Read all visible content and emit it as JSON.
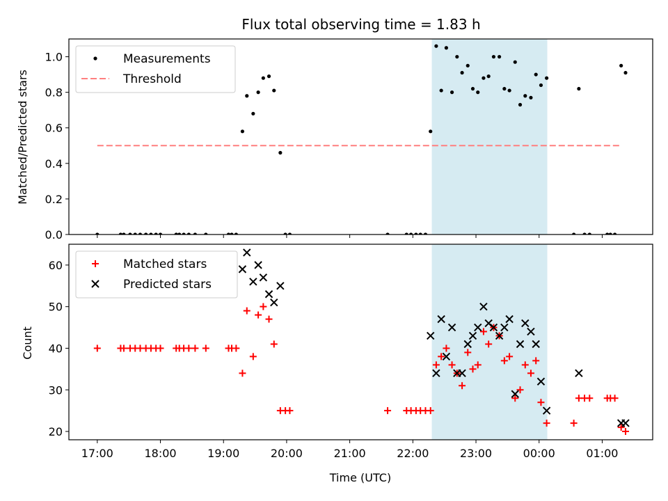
{
  "chart_data": [
    {
      "type": "scatter",
      "title": "Flux total observing time = 1.83 h",
      "xlabel": "",
      "ylabel": "Matched/Predicted stars",
      "xlim": [
        -0.45,
        8.8
      ],
      "ylim": [
        0,
        1.1
      ],
      "yticks": [
        0,
        0.2,
        0.4,
        0.6,
        0.8,
        1.0
      ],
      "ytick_labels": [
        "0.0",
        "0.2",
        "0.4",
        "0.6",
        "0.8",
        "1.0"
      ],
      "xticks_hours": [
        0,
        1,
        2,
        3,
        4,
        5,
        6,
        7,
        8
      ],
      "shaded_span": {
        "x": [
          5.3,
          7.13
        ],
        "color": "#add8e6"
      },
      "legend": {
        "position": "upper-left",
        "entries": [
          "Measurements",
          "Threshold"
        ]
      },
      "threshold": {
        "name": "Threshold",
        "y": 0.5,
        "x": [
          0,
          8.3
        ],
        "color": "#ff7f7f",
        "style": "dashed"
      },
      "series": [
        {
          "name": "Measurements",
          "color": "#000000",
          "marker": "dot",
          "points": [
            [
              0.0,
              0.0
            ],
            [
              0.37,
              0.0
            ],
            [
              0.42,
              0.0
            ],
            [
              0.52,
              0.0
            ],
            [
              0.6,
              0.0
            ],
            [
              0.68,
              0.0
            ],
            [
              0.77,
              0.0
            ],
            [
              0.85,
              0.0
            ],
            [
              0.93,
              0.0
            ],
            [
              1.0,
              0.0
            ],
            [
              1.25,
              0.0
            ],
            [
              1.3,
              0.0
            ],
            [
              1.37,
              0.0
            ],
            [
              1.45,
              0.0
            ],
            [
              1.55,
              0.0
            ],
            [
              1.72,
              0.0
            ],
            [
              2.08,
              0.0
            ],
            [
              2.13,
              0.0
            ],
            [
              2.2,
              0.0
            ],
            [
              2.3,
              0.58
            ],
            [
              2.37,
              0.78
            ],
            [
              2.47,
              0.68
            ],
            [
              2.55,
              0.8
            ],
            [
              2.63,
              0.88
            ],
            [
              2.72,
              0.89
            ],
            [
              2.8,
              0.81
            ],
            [
              2.9,
              0.46
            ],
            [
              2.98,
              0.0
            ],
            [
              3.05,
              0.0
            ],
            [
              4.6,
              0.0
            ],
            [
              4.9,
              0.0
            ],
            [
              4.97,
              0.0
            ],
            [
              5.05,
              0.0
            ],
            [
              5.12,
              0.0
            ],
            [
              5.2,
              0.0
            ],
            [
              5.28,
              0.58
            ],
            [
              5.37,
              1.06
            ],
            [
              5.45,
              0.81
            ],
            [
              5.53,
              1.05
            ],
            [
              5.62,
              0.8
            ],
            [
              5.7,
              1.0
            ],
            [
              5.78,
              0.91
            ],
            [
              5.87,
              0.95
            ],
            [
              5.95,
              0.82
            ],
            [
              6.03,
              0.8
            ],
            [
              6.12,
              0.88
            ],
            [
              6.2,
              0.89
            ],
            [
              6.28,
              1.0
            ],
            [
              6.37,
              1.0
            ],
            [
              6.45,
              0.82
            ],
            [
              6.53,
              0.81
            ],
            [
              6.62,
              0.97
            ],
            [
              6.7,
              0.73
            ],
            [
              6.78,
              0.78
            ],
            [
              6.87,
              0.77
            ],
            [
              6.95,
              0.9
            ],
            [
              7.03,
              0.84
            ],
            [
              7.12,
              0.88
            ],
            [
              7.55,
              0.0
            ],
            [
              7.63,
              0.82
            ],
            [
              7.72,
              0.0
            ],
            [
              7.8,
              0.0
            ],
            [
              8.08,
              0.0
            ],
            [
              8.13,
              0.0
            ],
            [
              8.2,
              0.0
            ],
            [
              8.3,
              0.95
            ],
            [
              8.37,
              0.91
            ]
          ]
        }
      ]
    },
    {
      "type": "scatter",
      "title": "",
      "xlabel": "Time (UTC)",
      "ylabel": "Count",
      "xlim": [
        -0.45,
        8.8
      ],
      "ylim": [
        18,
        65
      ],
      "yticks": [
        20,
        30,
        40,
        50,
        60
      ],
      "ytick_labels": [
        "20",
        "30",
        "40",
        "50",
        "60"
      ],
      "xticks_hours": [
        0,
        1,
        2,
        3,
        4,
        5,
        6,
        7,
        8
      ],
      "xtick_labels": [
        "17:00",
        "18:00",
        "19:00",
        "20:00",
        "21:00",
        "22:00",
        "23:00",
        "00:00",
        "01:00"
      ],
      "shaded_span": {
        "x": [
          5.3,
          7.13
        ],
        "color": "#add8e6"
      },
      "legend": {
        "position": "upper-left",
        "entries": [
          "Matched stars",
          "Predicted stars"
        ]
      },
      "series": [
        {
          "name": "Matched stars",
          "color": "#ff0000",
          "marker": "plus",
          "points": [
            [
              0.0,
              40
            ],
            [
              0.37,
              40
            ],
            [
              0.42,
              40
            ],
            [
              0.52,
              40
            ],
            [
              0.6,
              40
            ],
            [
              0.68,
              40
            ],
            [
              0.77,
              40
            ],
            [
              0.85,
              40
            ],
            [
              0.93,
              40
            ],
            [
              1.0,
              40
            ],
            [
              1.25,
              40
            ],
            [
              1.3,
              40
            ],
            [
              1.37,
              40
            ],
            [
              1.45,
              40
            ],
            [
              1.55,
              40
            ],
            [
              1.72,
              40
            ],
            [
              2.08,
              40
            ],
            [
              2.13,
              40
            ],
            [
              2.2,
              40
            ],
            [
              2.3,
              34
            ],
            [
              2.37,
              49
            ],
            [
              2.47,
              38
            ],
            [
              2.55,
              48
            ],
            [
              2.63,
              50
            ],
            [
              2.72,
              47
            ],
            [
              2.8,
              41
            ],
            [
              2.9,
              25
            ],
            [
              2.98,
              25
            ],
            [
              3.05,
              25
            ],
            [
              4.6,
              25
            ],
            [
              4.9,
              25
            ],
            [
              4.97,
              25
            ],
            [
              5.05,
              25
            ],
            [
              5.12,
              25
            ],
            [
              5.2,
              25
            ],
            [
              5.28,
              25
            ],
            [
              5.37,
              36
            ],
            [
              5.45,
              38
            ],
            [
              5.53,
              40
            ],
            [
              5.62,
              36
            ],
            [
              5.7,
              34
            ],
            [
              5.78,
              31
            ],
            [
              5.87,
              39
            ],
            [
              5.95,
              35
            ],
            [
              6.03,
              36
            ],
            [
              6.12,
              44
            ],
            [
              6.2,
              41
            ],
            [
              6.28,
              45
            ],
            [
              6.37,
              43
            ],
            [
              6.45,
              37
            ],
            [
              6.53,
              38
            ],
            [
              6.62,
              28
            ],
            [
              6.7,
              30
            ],
            [
              6.78,
              36
            ],
            [
              6.87,
              34
            ],
            [
              6.95,
              37
            ],
            [
              7.03,
              27
            ],
            [
              7.12,
              22
            ],
            [
              7.55,
              22
            ],
            [
              7.63,
              28
            ],
            [
              7.72,
              28
            ],
            [
              7.8,
              28
            ],
            [
              8.08,
              28
            ],
            [
              8.13,
              28
            ],
            [
              8.2,
              28
            ],
            [
              8.3,
              21
            ],
            [
              8.37,
              20
            ]
          ]
        },
        {
          "name": "Predicted stars",
          "color": "#000000",
          "marker": "x",
          "points": [
            [
              2.3,
              59
            ],
            [
              2.37,
              63
            ],
            [
              2.47,
              56
            ],
            [
              2.55,
              60
            ],
            [
              2.63,
              57
            ],
            [
              2.72,
              53
            ],
            [
              2.8,
              51
            ],
            [
              2.9,
              55
            ],
            [
              5.28,
              43
            ],
            [
              5.37,
              34
            ],
            [
              5.45,
              47
            ],
            [
              5.53,
              38
            ],
            [
              5.62,
              45
            ],
            [
              5.7,
              34
            ],
            [
              5.78,
              34
            ],
            [
              5.87,
              41
            ],
            [
              5.95,
              43
            ],
            [
              6.03,
              45
            ],
            [
              6.12,
              50
            ],
            [
              6.2,
              46
            ],
            [
              6.28,
              45
            ],
            [
              6.37,
              43
            ],
            [
              6.45,
              45
            ],
            [
              6.53,
              47
            ],
            [
              6.62,
              29
            ],
            [
              6.7,
              41
            ],
            [
              6.78,
              46
            ],
            [
              6.87,
              44
            ],
            [
              6.95,
              41
            ],
            [
              7.03,
              32
            ],
            [
              7.12,
              25
            ],
            [
              7.63,
              34
            ],
            [
              8.3,
              22
            ],
            [
              8.37,
              22
            ]
          ]
        }
      ]
    }
  ]
}
